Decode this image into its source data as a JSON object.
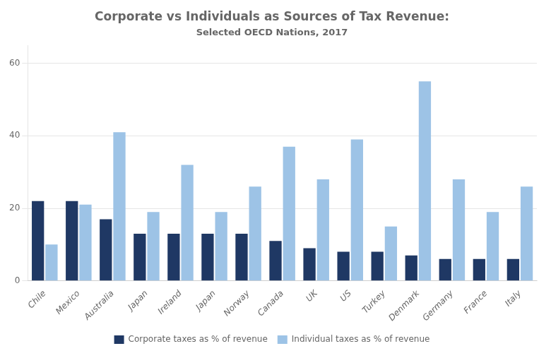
{
  "chart_data": {
    "type": "bar",
    "title": "Corporate vs Individuals as Sources of Tax Revenue:",
    "subtitle": "Selected OECD Nations, 2017",
    "categories": [
      "Chile",
      "Mexico",
      "Australia",
      "Japan",
      "Ireland",
      "Japan",
      "Norway",
      "Canada",
      "UK",
      "US",
      "Turkey",
      "Denmark",
      "Germany",
      "France",
      "Italy"
    ],
    "series": [
      {
        "name": "Corporate taxes as % of revenue",
        "color": "#1F3864",
        "values": [
          22,
          22,
          17,
          13,
          13,
          13,
          13,
          11,
          9,
          8,
          8,
          7,
          6,
          6,
          6
        ]
      },
      {
        "name": "Individual taxes as % of revenue",
        "color": "#9DC3E6",
        "values": [
          10,
          21,
          41,
          19,
          32,
          19,
          26,
          37,
          28,
          39,
          15,
          55,
          28,
          19,
          26
        ]
      }
    ],
    "ylim": [
      0,
      65
    ],
    "yticks": [
      0,
      20,
      40,
      60
    ],
    "grid": true,
    "legend": "bottom"
  }
}
